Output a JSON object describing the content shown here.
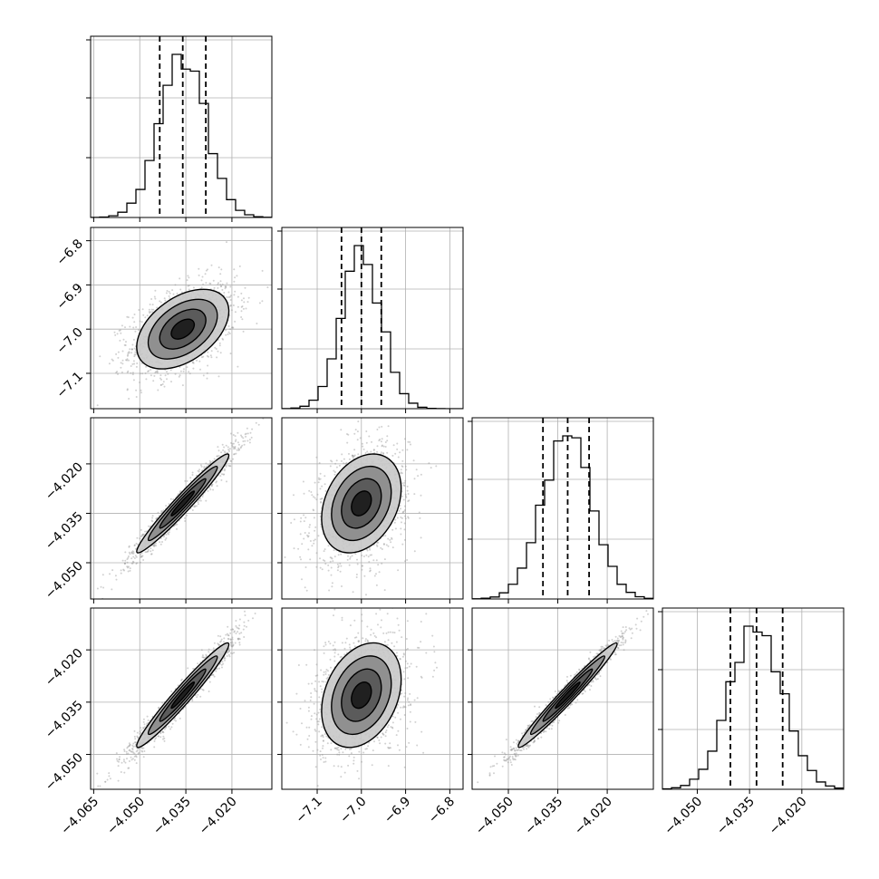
{
  "chart_data": {
    "type": "corner",
    "description_source": "corner plot of a 4-parameter posterior sample",
    "colors": {
      "ink": "#000000",
      "grid": "#b0b0b0",
      "scatter": "#9a9a9a"
    },
    "grid": true,
    "params": [
      {
        "range": [
          -4.066,
          -4.007
        ],
        "ticks": [
          "−4.065",
          "−4.050",
          "−4.035",
          "−4.020"
        ],
        "tick_values": [
          -4.065,
          -4.05,
          -4.035,
          -4.02
        ],
        "mean": -4.036,
        "sd": 0.0075,
        "quantiles": [
          -4.0435,
          -4.036,
          -4.0285
        ],
        "hist_gridlines": [
          0.33,
          0.66,
          0.98
        ]
      },
      {
        "range": [
          -7.18,
          -6.77
        ],
        "ticks": [
          "−7.1",
          "−7.0",
          "−6.9",
          "−6.8"
        ],
        "tick_values": [
          -7.1,
          -7.0,
          -6.9,
          -6.8
        ],
        "mean": -7.0,
        "sd": 0.045,
        "quantiles": [
          -7.045,
          -7.0,
          -6.955
        ],
        "hist_gridlines": [
          0.33,
          0.66,
          0.98
        ]
      },
      {
        "range": [
          -4.061,
          -4.006
        ],
        "ticks": [
          "−4.050",
          "−4.035",
          "−4.020"
        ],
        "tick_values": [
          -4.05,
          -4.035,
          -4.02
        ],
        "mean": -4.032,
        "sd": 0.0075,
        "quantiles": [
          -4.0395,
          -4.032,
          -4.0255
        ],
        "hist_gridlines": [
          0.33,
          0.66,
          0.98
        ]
      },
      {
        "range": [
          -4.06,
          -4.008
        ],
        "ticks": [
          "−4.050",
          "−4.035",
          "−4.020"
        ],
        "tick_values": [
          -4.05,
          -4.035,
          -4.02
        ],
        "mean": -4.033,
        "sd": 0.0075,
        "quantiles": [
          -4.0405,
          -4.033,
          -4.0255
        ],
        "hist_gridlines": [
          0.33,
          0.66,
          0.98
        ]
      }
    ],
    "correlations": [
      [
        1.0,
        0.45,
        0.97,
        0.97
      ],
      [
        0.45,
        1.0,
        0.3,
        0.3
      ],
      [
        0.97,
        0.3,
        1.0,
        0.98
      ],
      [
        0.97,
        0.3,
        0.98,
        1.0
      ]
    ],
    "contour_levels_sigma": [
      0.5,
      1.0,
      1.5,
      2.0
    ],
    "n_samples_scatter": 1500,
    "hist_bins": 20
  }
}
